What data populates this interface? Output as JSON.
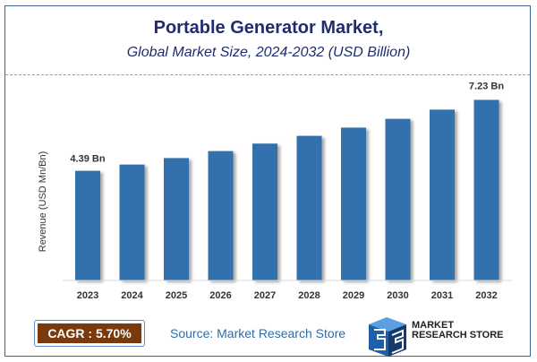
{
  "header": {
    "title": "Portable Generator Market,",
    "subtitle": "Global Market Size, 2024-2032 (USD Billion)"
  },
  "chart_data": {
    "type": "bar",
    "categories": [
      "2023",
      "2024",
      "2025",
      "2026",
      "2027",
      "2028",
      "2029",
      "2030",
      "2031",
      "2032"
    ],
    "values": [
      4.39,
      4.64,
      4.9,
      5.18,
      5.48,
      5.79,
      6.12,
      6.47,
      6.84,
      7.23
    ],
    "data_labels": {
      "0": "4.39 Bn",
      "9": "7.23 Bn"
    },
    "xlabel": "",
    "ylabel": "Revenue (USD Mn/Bn)",
    "ylim": [
      0,
      8
    ],
    "grid": false,
    "bar_color": "#3171ad"
  },
  "footer": {
    "cagr": "CAGR :  5.70%",
    "source": "Source: Market Research Store",
    "logo_line1": "MARKET",
    "logo_line2": "RESEARCH STORE"
  },
  "colors": {
    "title": "#1f2d6e",
    "cagr_bg": "#7b3a0c",
    "source": "#2e6da8"
  }
}
